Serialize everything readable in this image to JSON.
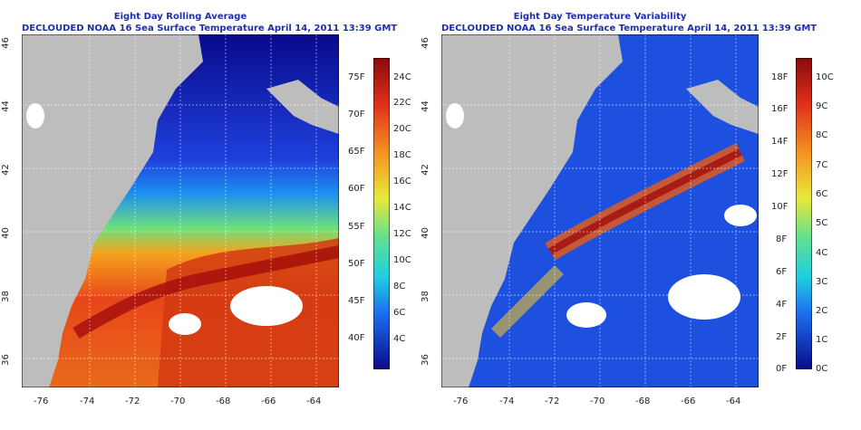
{
  "panels": [
    {
      "title_line1": "Eight Day Rolling Average",
      "title_line2": "DECLOUDED NOAA 16 Sea Surface Temperature April 14, 2011 13:39 GMT",
      "colorbar_left_labels": [
        "75F",
        "70F",
        "65F",
        "60F",
        "55F",
        "50F",
        "45F",
        "40F"
      ],
      "colorbar_right_labels": [
        "24C",
        "22C",
        "20C",
        "18C",
        "16C",
        "14C",
        "12C",
        "10C",
        "8C",
        "6C",
        "4C"
      ]
    },
    {
      "title_line1": "Eight Day Temperature Variability",
      "title_line2": "DECLOUDED NOAA 16 Sea Surface Temperature April 14, 2011 13:39 GMT",
      "colorbar_left_labels": [
        "18F",
        "16F",
        "14F",
        "12F",
        "10F",
        "8F",
        "6F",
        "4F",
        "2F",
        "0F"
      ],
      "colorbar_right_labels": [
        "10C",
        "9C",
        "8C",
        "7C",
        "6C",
        "5C",
        "4C",
        "3C",
        "2C",
        "1C",
        "0C"
      ]
    }
  ],
  "axes": {
    "x_ticks": [
      "-76",
      "-74",
      "-72",
      "-70",
      "-68",
      "-66",
      "-64"
    ],
    "y_ticks": [
      "46",
      "44",
      "42",
      "40",
      "38",
      "36"
    ]
  },
  "colors": {
    "title": "#1f2fa8",
    "land": "#bdbdbd",
    "cloud": "#ffffff",
    "colormap": [
      "#0a0a8c",
      "#1e3fdc",
      "#1c8ff0",
      "#1fd0e0",
      "#6fe07a",
      "#e8e83a",
      "#f5a21e",
      "#e8461a",
      "#a30d0d"
    ]
  },
  "map_region": {
    "lon_range": [
      -77,
      -63
    ],
    "lat_range": [
      35,
      46
    ]
  }
}
